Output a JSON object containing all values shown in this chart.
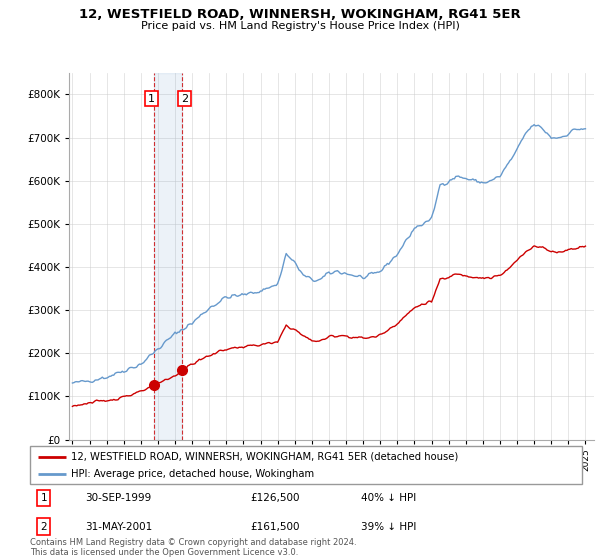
{
  "title": "12, WESTFIELD ROAD, WINNERSH, WOKINGHAM, RG41 5ER",
  "subtitle": "Price paid vs. HM Land Registry's House Price Index (HPI)",
  "legend_line1": "12, WESTFIELD ROAD, WINNERSH, WOKINGHAM, RG41 5ER (detached house)",
  "legend_line2": "HPI: Average price, detached house, Wokingham",
  "footer": "Contains HM Land Registry data © Crown copyright and database right 2024.\nThis data is licensed under the Open Government Licence v3.0.",
  "transaction1": {
    "label": "1",
    "date": "30-SEP-1999",
    "price": "£126,500",
    "hpi": "40% ↓ HPI"
  },
  "transaction2": {
    "label": "2",
    "date": "31-MAY-2001",
    "price": "£161,500",
    "hpi": "39% ↓ HPI"
  },
  "property_color": "#cc0000",
  "hpi_color": "#6699cc",
  "marker1_x": 1999.75,
  "marker1_y": 126500,
  "marker2_x": 2001.42,
  "marker2_y": 161500,
  "vline1_x": 1999.75,
  "vline2_x": 2001.42,
  "ylim": [
    0,
    850000
  ],
  "xlim_start": 1994.8,
  "xlim_end": 2025.5,
  "background_color": "#ffffff",
  "grid_color": "#cccccc"
}
